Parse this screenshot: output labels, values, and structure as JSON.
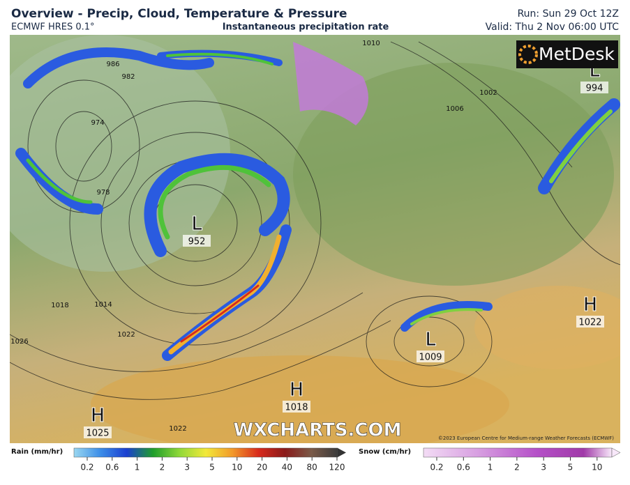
{
  "header": {
    "title": "Overview - Precip, Cloud, Temperature & Pressure",
    "model": "ECMWF HRES 0.1°",
    "product": "Instantaneous precipitation rate",
    "run": "Run: Sun 29 Oct 12Z",
    "valid": "Valid: Thu 2 Nov 06:00 UTC"
  },
  "logo": "MetDesk",
  "pressure_centers": [
    {
      "type": "L",
      "value": 994
    },
    {
      "type": "H",
      "value": 1022
    },
    {
      "type": "L",
      "value": 952
    },
    {
      "type": "L",
      "value": 1009
    },
    {
      "type": "H",
      "value": 1018
    },
    {
      "type": "H",
      "value": 1025
    }
  ],
  "isobar_labels": [
    1010,
    1002,
    1006,
    986,
    982,
    974,
    978,
    1018,
    1014,
    1022,
    1026,
    1022
  ],
  "watermark": "WXCHARTS.COM",
  "copyright": "©2023 European Centre for Medium-range Weather Forecasts (ECMWF)",
  "legend": {
    "rain": {
      "title": "Rain (mm/hr)",
      "ticks": [
        0.2,
        0.6,
        1,
        2,
        3,
        5,
        10,
        20,
        40,
        80,
        120
      ]
    },
    "snow": {
      "title": "Snow (cm/hr)",
      "ticks": [
        0.2,
        0.6,
        1,
        2,
        3,
        5,
        10
      ]
    }
  }
}
